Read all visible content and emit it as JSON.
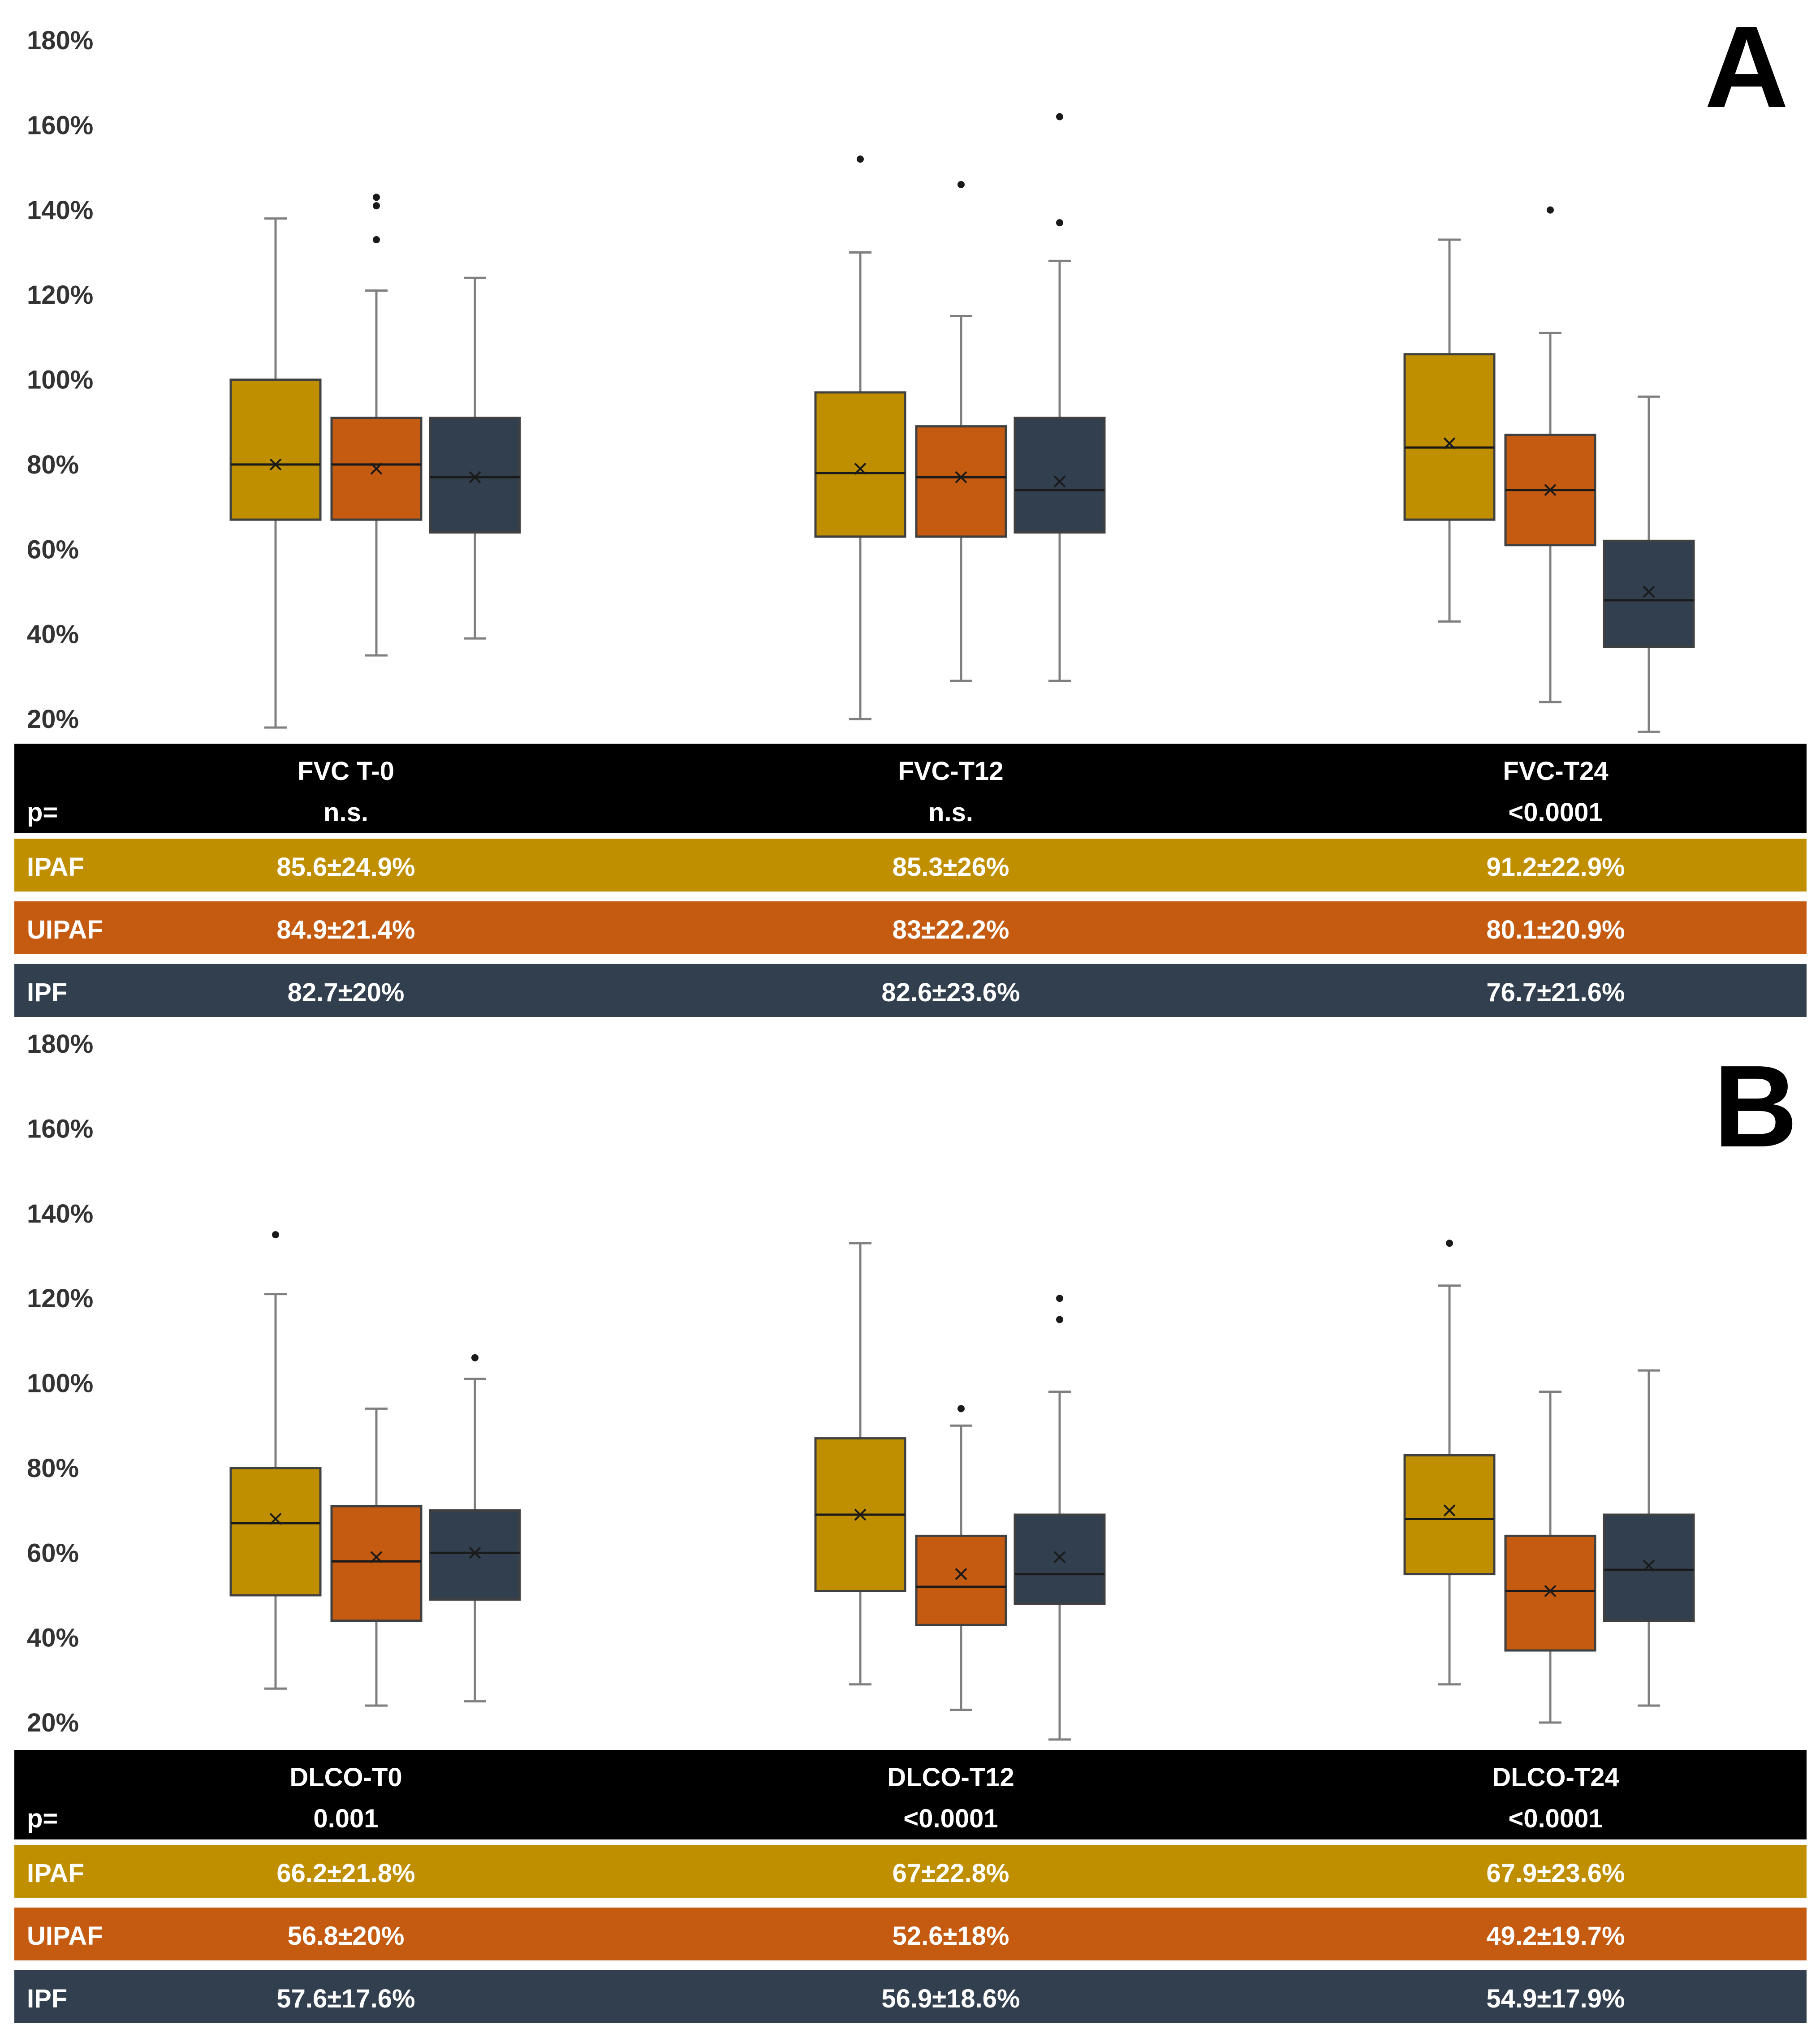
{
  "colors": {
    "IPAF": "#bf8f00",
    "UIPAF": "#c55a11",
    "IPF": "#323f4f"
  },
  "chart_data": [
    {
      "panel": "A",
      "type": "box",
      "yticks": [
        "180%",
        "160%",
        "140%",
        "120%",
        "100%",
        "80%",
        "60%",
        "40%",
        "20%"
      ],
      "ylim": [
        20,
        180
      ],
      "groups": [
        "FVC T-0",
        "FVC-T12",
        "FVC-T24"
      ],
      "boxes": [
        [
          {
            "series": "IPAF",
            "min": 18,
            "q1": 67,
            "median": 80,
            "mean": 80,
            "q3": 100,
            "max": 138,
            "outliers": []
          },
          {
            "series": "UIPAF",
            "min": 35,
            "q1": 67,
            "median": 80,
            "mean": 79,
            "q3": 91,
            "max": 121,
            "outliers": [
              133,
              141,
              143
            ]
          },
          {
            "series": "IPF",
            "min": 39,
            "q1": 64,
            "median": 77,
            "mean": 77,
            "q3": 91,
            "max": 124,
            "outliers": []
          }
        ],
        [
          {
            "series": "IPAF",
            "min": 20,
            "q1": 63,
            "median": 78,
            "mean": 79,
            "q3": 97,
            "max": 130,
            "outliers": [
              152
            ]
          },
          {
            "series": "UIPAF",
            "min": 29,
            "q1": 63,
            "median": 77,
            "mean": 77,
            "q3": 89,
            "max": 115,
            "outliers": [
              146
            ]
          },
          {
            "series": "IPF",
            "min": 29,
            "q1": 64,
            "median": 74,
            "mean": 76,
            "q3": 91,
            "max": 128,
            "outliers": [
              137,
              162
            ]
          }
        ],
        [
          {
            "series": "IPAF",
            "min": 43,
            "q1": 67,
            "median": 84,
            "mean": 85,
            "q3": 106,
            "max": 133,
            "outliers": []
          },
          {
            "series": "UIPAF",
            "min": 24,
            "q1": 61,
            "median": 74,
            "mean": 74,
            "q3": 87,
            "max": 111,
            "outliers": [
              140
            ]
          },
          {
            "series": "IPF",
            "min": 17,
            "q1": 37,
            "median": 48,
            "mean": 50,
            "q3": 62,
            "max": 96,
            "outliers": []
          }
        ]
      ],
      "table": {
        "p_label": "p=",
        "columns": [
          {
            "name": "FVC T-0",
            "p": "n.s."
          },
          {
            "name": "FVC-T12",
            "p": "n.s."
          },
          {
            "name": "FVC-T24",
            "p": "<0.0001"
          }
        ],
        "rows": [
          {
            "label": "IPAF",
            "values": [
              "85.6±24.9%",
              "85.3±26%",
              "91.2±22.9%"
            ]
          },
          {
            "label": "UIPAF",
            "values": [
              "84.9±21.4%",
              "83±22.2%",
              "80.1±20.9%"
            ]
          },
          {
            "label": "IPF",
            "values": [
              "82.7±20%",
              "82.6±23.6%",
              "76.7±21.6%"
            ]
          }
        ]
      }
    },
    {
      "panel": "B",
      "type": "box",
      "yticks": [
        "180%",
        "160%",
        "140%",
        "120%",
        "100%",
        "80%",
        "60%",
        "40%",
        "20%"
      ],
      "ylim": [
        20,
        180
      ],
      "groups": [
        "DLCO-T0",
        "DLCO-T12",
        "DLCO-T24"
      ],
      "boxes": [
        [
          {
            "series": "IPAF",
            "min": 28,
            "q1": 50,
            "median": 67,
            "mean": 68,
            "q3": 80,
            "max": 121,
            "outliers": [
              135
            ]
          },
          {
            "series": "UIPAF",
            "min": 24,
            "q1": 44,
            "median": 58,
            "mean": 59,
            "q3": 71,
            "max": 94,
            "outliers": []
          },
          {
            "series": "IPF",
            "min": 25,
            "q1": 49,
            "median": 60,
            "mean": 60,
            "q3": 70,
            "max": 101,
            "outliers": [
              106
            ]
          }
        ],
        [
          {
            "series": "IPAF",
            "min": 29,
            "q1": 51,
            "median": 69,
            "mean": 69,
            "q3": 87,
            "max": 133,
            "outliers": []
          },
          {
            "series": "UIPAF",
            "min": 23,
            "q1": 43,
            "median": 52,
            "mean": 55,
            "q3": 64,
            "max": 90,
            "outliers": [
              94
            ]
          },
          {
            "series": "IPF",
            "min": 16,
            "q1": 48,
            "median": 55,
            "mean": 59,
            "q3": 69,
            "max": 98,
            "outliers": [
              115,
              120
            ]
          }
        ],
        [
          {
            "series": "IPAF",
            "min": 29,
            "q1": 55,
            "median": 68,
            "mean": 70,
            "q3": 83,
            "max": 123,
            "outliers": [
              133
            ]
          },
          {
            "series": "UIPAF",
            "min": 20,
            "q1": 37,
            "median": 51,
            "mean": 51,
            "q3": 64,
            "max": 98,
            "outliers": []
          },
          {
            "series": "IPF",
            "min": 24,
            "q1": 44,
            "median": 56,
            "mean": 57,
            "q3": 69,
            "max": 103,
            "outliers": []
          }
        ]
      ],
      "table": {
        "p_label": "p=",
        "columns": [
          {
            "name": "DLCO-T0",
            "p": "0.001"
          },
          {
            "name": "DLCO-T12",
            "p": "<0.0001"
          },
          {
            "name": "DLCO-T24",
            "p": "<0.0001"
          }
        ],
        "rows": [
          {
            "label": "IPAF",
            "values": [
              "66.2±21.8%",
              "67±22.8%",
              "67.9±23.6%"
            ]
          },
          {
            "label": "UIPAF",
            "values": [
              "56.8±20%",
              "52.6±18%",
              "49.2±19.7%"
            ]
          },
          {
            "label": "IPF",
            "values": [
              "57.6±17.6%",
              "56.9±18.6%",
              "54.9±17.9%"
            ]
          }
        ]
      }
    }
  ]
}
